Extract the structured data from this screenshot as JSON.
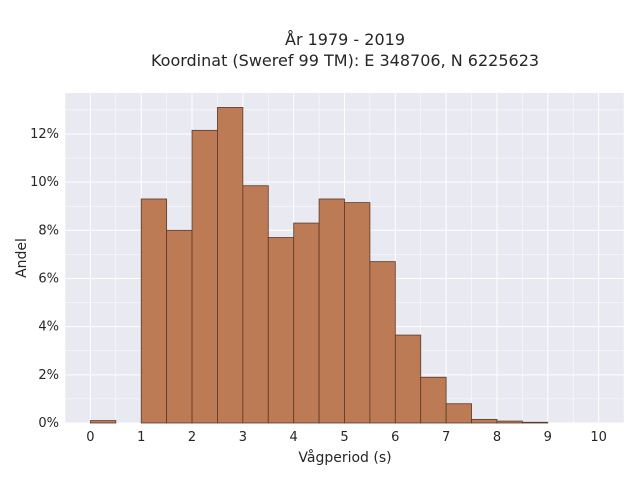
{
  "chart_data": {
    "type": "bar",
    "title_line1": "År 1979 - 2019",
    "title_line2": "Koordinat (Sweref 99 TM): E 348706, N 6225623",
    "xlabel": "Vågperiod (s)",
    "ylabel": "Andel",
    "bin_width": 0.5,
    "bin_starts": [
      0,
      0.5,
      1,
      1.5,
      2,
      2.5,
      3,
      3.5,
      4,
      4.5,
      5,
      5.5,
      6,
      6.5,
      7,
      7.5,
      8,
      8.5,
      9,
      9.5
    ],
    "values": [
      0.1,
      0,
      9.3,
      8.0,
      12.15,
      13.1,
      9.85,
      7.7,
      8.3,
      9.3,
      9.15,
      6.7,
      3.65,
      1.9,
      0.8,
      0.15,
      0.08,
      0.03,
      0,
      0
    ],
    "xlim": [
      -0.5,
      10.5
    ],
    "ylim": [
      0,
      13.7
    ],
    "x_ticks": [
      0,
      1,
      2,
      3,
      4,
      5,
      6,
      7,
      8,
      9,
      10
    ],
    "x_tick_labels": [
      "0",
      "1",
      "2",
      "3",
      "4",
      "5",
      "6",
      "7",
      "8",
      "9",
      "10"
    ],
    "y_ticks": [
      0,
      2,
      4,
      6,
      8,
      10,
      12
    ],
    "y_tick_labels": [
      "0%",
      "2%",
      "4%",
      "6%",
      "8%",
      "10%",
      "12%"
    ],
    "grid": true,
    "colors": {
      "background": "#e9e9f1",
      "grid": "#ffffff",
      "bar_fill": "#bc7a55",
      "bar_edge": "#5a3a28"
    }
  }
}
